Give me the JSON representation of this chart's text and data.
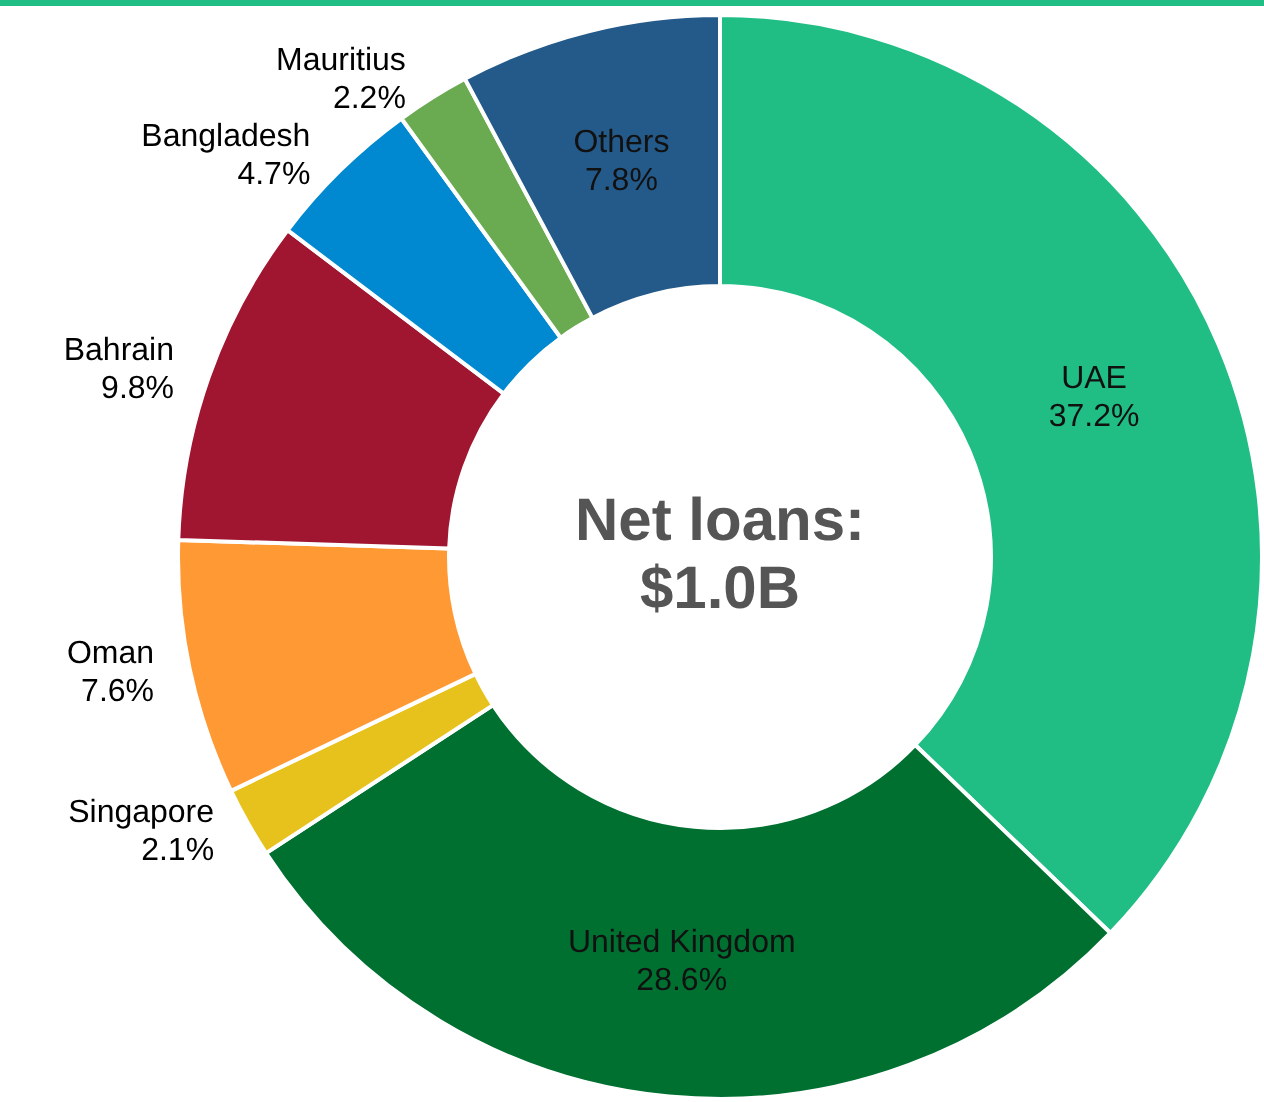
{
  "chart_data": {
    "type": "donut",
    "title": "Net loans: $1.0B",
    "categories": [
      "UAE",
      "United Kingdom",
      "Singapore",
      "Oman",
      "Bahrain",
      "Bangladesh",
      "Mauritius",
      "Others"
    ],
    "values": [
      37.2,
      28.6,
      2.1,
      7.6,
      9.8,
      4.7,
      2.2,
      7.8
    ],
    "colors": [
      "#20be85",
      "#007030",
      "#e8c21c",
      "#ff9933",
      "#a01530",
      "#0088d0",
      "#6aaa50",
      "#245a8a"
    ],
    "value_labels": [
      "37.2%",
      "28.6%",
      "2.1%",
      "7.6%",
      "9.8%",
      "4.7%",
      "2.2%",
      "7.8%"
    ],
    "legend": false
  }
}
